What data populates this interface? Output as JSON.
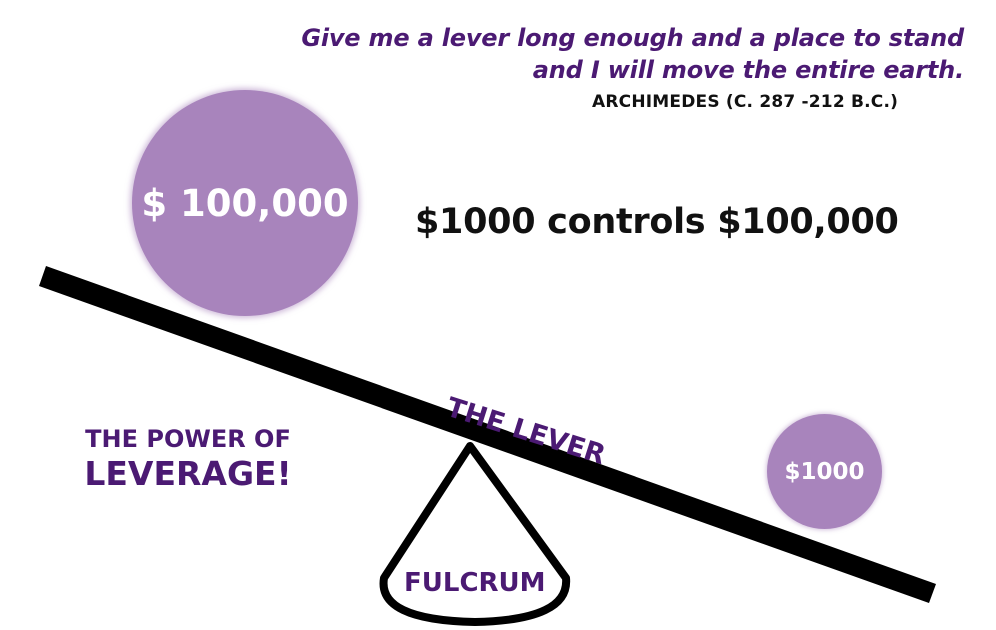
{
  "quote": {
    "line1": "Give me a lever long enough and a place to stand",
    "line2": "and I will move the entire earth.",
    "attribution": "ARCHIMEDES (C. 287 -212 B.C.)"
  },
  "headline": "$1000 controls $100,000",
  "weights": {
    "large_label": "$ 100,000",
    "small_label": "$1000"
  },
  "lever_label": "THE LEVER",
  "fulcrum_label": "FULCRUM",
  "power": {
    "line1": "THE POWER OF",
    "line2": "LEVERAGE!"
  },
  "colors": {
    "purple_text": "#4b1a73",
    "weight_fill": "#a884bc",
    "lever": "#000000"
  }
}
